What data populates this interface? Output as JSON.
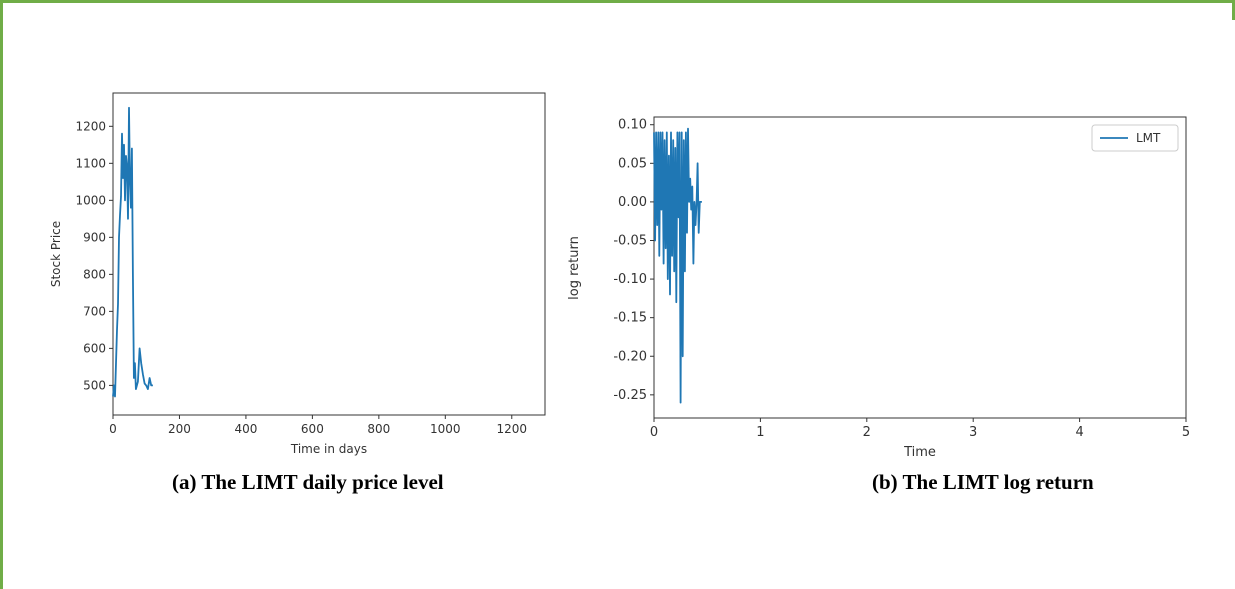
{
  "colors": {
    "frame": "#70ad47",
    "series": "#1f77b4",
    "axis": "#333333"
  },
  "captions": {
    "a": "(a)  The LIMT daily price level",
    "b": "(b) The LIMT log return"
  },
  "chart_data": [
    {
      "type": "line",
      "title": "",
      "xlabel": "Time in days",
      "ylabel": "Stock Price",
      "xlim": [
        0,
        1300
      ],
      "ylim": [
        420,
        1290
      ],
      "xticks": [
        0,
        200,
        400,
        600,
        800,
        1000,
        1200
      ],
      "yticks": [
        500,
        600,
        700,
        800,
        900,
        1000,
        1100,
        1200
      ],
      "grid": false,
      "legend": "none",
      "series": [
        {
          "x": [
            0,
            3,
            6,
            9,
            12,
            15,
            18,
            21,
            24,
            27,
            30,
            33,
            36,
            39,
            42,
            45,
            48,
            51,
            54,
            57,
            60,
            63,
            66,
            69,
            72,
            75,
            80,
            85,
            90,
            95,
            100,
            105,
            110,
            115,
            120
          ],
          "y": [
            470,
            500,
            470,
            560,
            650,
            720,
            900,
            960,
            1010,
            1180,
            1060,
            1150,
            1000,
            1120,
            1090,
            950,
            1250,
            1060,
            980,
            1140,
            800,
            520,
            560,
            490,
            500,
            510,
            600,
            560,
            530,
            505,
            500,
            490,
            520,
            500,
            500
          ]
        }
      ]
    },
    {
      "type": "line",
      "title": "",
      "xlabel": "Time",
      "ylabel": "log return",
      "xlim": [
        0,
        5
      ],
      "ylim": [
        -0.28,
        0.11
      ],
      "xticks": [
        0,
        1,
        2,
        3,
        4,
        5
      ],
      "yticks": [
        0.1,
        0.05,
        0.0,
        -0.05,
        -0.1,
        -0.15,
        -0.2,
        -0.25
      ],
      "grid": false,
      "legend": "top-right",
      "series": [
        {
          "name": "LMT",
          "x": [
            0,
            0.01,
            0.02,
            0.03,
            0.04,
            0.05,
            0.06,
            0.07,
            0.08,
            0.09,
            0.1,
            0.11,
            0.12,
            0.13,
            0.14,
            0.15,
            0.16,
            0.17,
            0.18,
            0.19,
            0.2,
            0.21,
            0.22,
            0.23,
            0.24,
            0.25,
            0.26,
            0.27,
            0.28,
            0.29,
            0.3,
            0.31,
            0.32,
            0.33,
            0.34,
            0.35,
            0.36,
            0.37,
            0.38,
            0.39,
            0.4,
            0.41,
            0.42,
            0.43,
            0.44,
            0.45
          ],
          "y": [
            0.09,
            -0.05,
            0.09,
            -0.03,
            0.09,
            -0.07,
            0.09,
            -0.01,
            0.09,
            -0.08,
            0.08,
            -0.06,
            0.09,
            -0.1,
            0.06,
            -0.12,
            0.09,
            -0.07,
            0.08,
            -0.09,
            0.07,
            -0.13,
            0.09,
            -0.02,
            0.09,
            -0.26,
            0.09,
            -0.2,
            0.08,
            -0.09,
            0.09,
            -0.04,
            0.095,
            0.0,
            0.03,
            -0.01,
            0.02,
            -0.08,
            0.0,
            -0.03,
            0.0,
            0.05,
            -0.04,
            0.0,
            0.0,
            0.0
          ]
        }
      ]
    }
  ]
}
